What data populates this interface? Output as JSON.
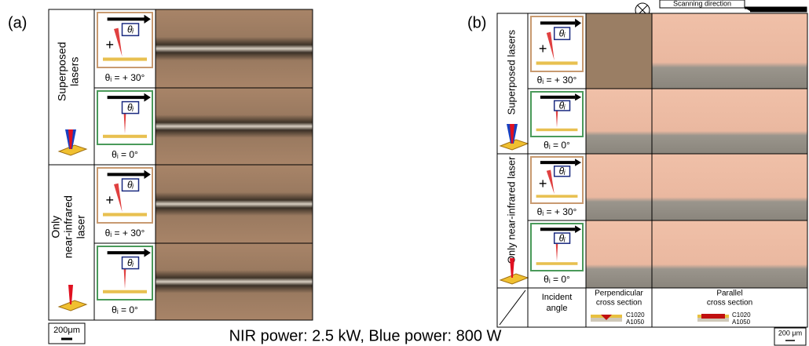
{
  "panel_a": {
    "label": "(a)",
    "icon_symbol": "θᵢ",
    "groups": [
      {
        "label_lines": [
          "Superposed",
          "lasers"
        ],
        "rows": [
          {
            "angle": "θᵢ = + 30°"
          },
          {
            "angle": "θᵢ = 0°"
          }
        ]
      },
      {
        "label_lines": [
          "Only",
          "near-infrared",
          "laser"
        ],
        "rows": [
          {
            "angle": "θᵢ = + 30°"
          },
          {
            "angle": "θᵢ = 0°"
          }
        ]
      }
    ],
    "scale_bar": "200μm"
  },
  "panel_b": {
    "label": "(b)",
    "icon_symbol": "θᵢ",
    "scanning_direction": "Scanning direction",
    "groups": [
      {
        "label": "Superposed lasers",
        "rows": [
          {
            "angle": "θᵢ = + 30°"
          },
          {
            "angle": "θᵢ = 0°"
          }
        ]
      },
      {
        "label": "Only near-infrared laser",
        "rows": [
          {
            "angle": "θᵢ = + 30°"
          },
          {
            "angle": "θᵢ = 0°"
          }
        ]
      }
    ],
    "footer": {
      "incident_angle": [
        "Incident",
        "angle"
      ],
      "perpendicular": [
        "Perpendicular",
        "cross section"
      ],
      "parallel": [
        "Parallel",
        "cross section"
      ],
      "material_top": "C1020",
      "material_bottom": "A1050"
    },
    "scale_bar": "200 μm"
  },
  "caption": "NIR power: 2.5 kW, Blue power: 800 W"
}
